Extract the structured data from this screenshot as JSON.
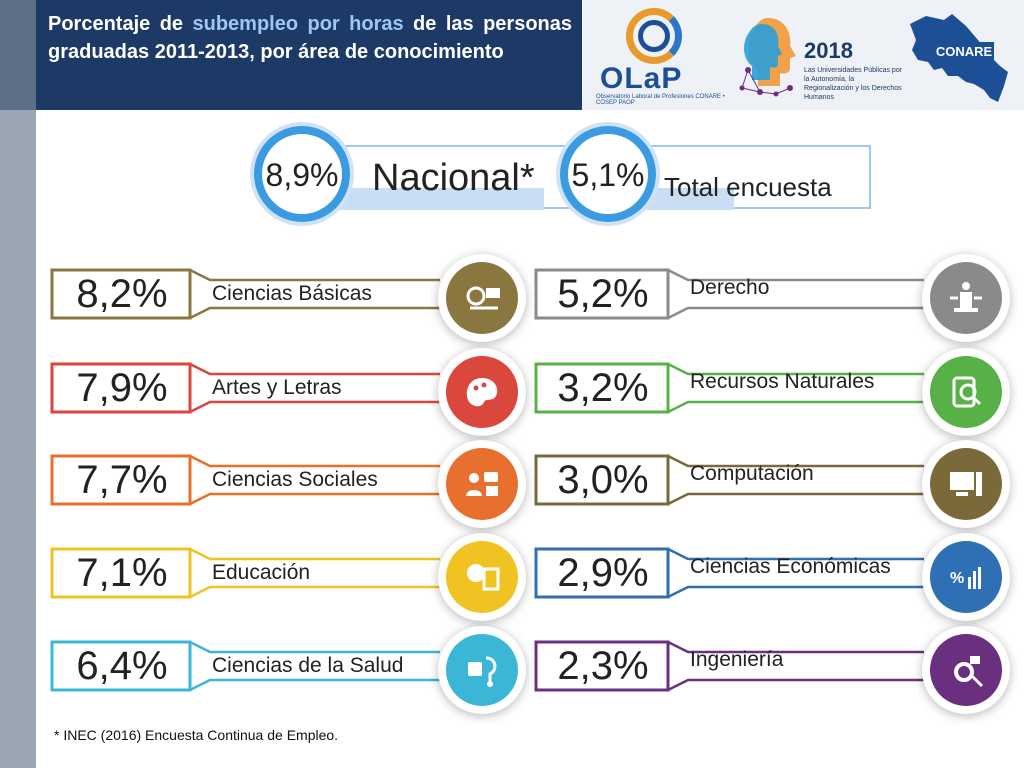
{
  "header": {
    "title_part1": "Porcentaje de ",
    "title_highlight": "subempleo por horas",
    "title_part2": " de las personas graduadas 2011-2013, por área de conocimiento"
  },
  "logos": {
    "olap_word": "OLaP",
    "olap_sub": "Observatorio Laboral de Profesiones CONARE • COSEP PAOP",
    "year": "2018",
    "year_sub": "Las Universidades Públicas por la Autonomía, la Regionalización y los Derechos Humanos",
    "conare": "CONARE"
  },
  "summary": {
    "national_value": "8,9%",
    "national_label": "Nacional*",
    "survey_value": "5,1%",
    "survey_label": "Total encuesta"
  },
  "areas_left": [
    {
      "value": "8,2%",
      "label": "Ciencias Básicas",
      "color": "#8a7740",
      "icon": "science-icon"
    },
    {
      "value": "7,9%",
      "label": "Artes y Letras",
      "color": "#d9473d",
      "icon": "palette-icon"
    },
    {
      "value": "7,7%",
      "label": "Ciencias Sociales",
      "color": "#e8702e",
      "icon": "social-icon"
    },
    {
      "value": "7,1%",
      "label": "Educación",
      "color": "#f0c322",
      "icon": "education-icon"
    },
    {
      "value": "6,4%",
      "label": "Ciencias de la Salud",
      "color": "#3bb6d6",
      "icon": "health-icon"
    }
  ],
  "areas_right": [
    {
      "value": "5,2%",
      "label": "Derecho",
      "color": "#8a8a8a",
      "icon": "law-icon"
    },
    {
      "value": "3,2%",
      "label": "Recursos Naturales",
      "color": "#58b147",
      "icon": "nature-icon"
    },
    {
      "value": "3,0%",
      "label": "Computación",
      "color": "#7a6a3a",
      "icon": "computer-icon"
    },
    {
      "value": "2,9%",
      "label": "Ciencias Económicas",
      "color": "#2f6fb3",
      "icon": "economics-icon"
    },
    {
      "value": "2,3%",
      "label": "Ingeniería",
      "color": "#6b2f7f",
      "icon": "engineering-icon"
    }
  ],
  "footnote": "* INEC (2016)  Encuesta Continua de Empleo."
}
